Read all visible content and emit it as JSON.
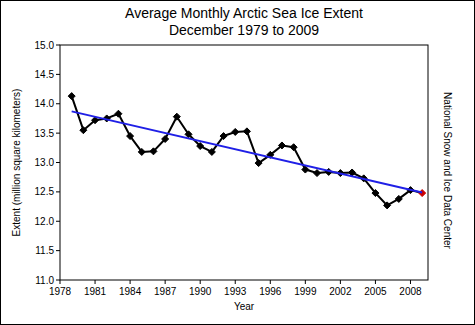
{
  "chart_data": {
    "type": "line",
    "title": "Average Monthly Arctic Sea Ice Extent",
    "subtitle": "December 1979 to 2009",
    "x_label": "Year",
    "y_label": "Extent (million square kilometers)",
    "annotation": "National Snow and Ice Data Center",
    "x": [
      1979,
      1980,
      1981,
      1982,
      1983,
      1984,
      1985,
      1986,
      1987,
      1988,
      1989,
      1990,
      1991,
      1992,
      1993,
      1994,
      1995,
      1996,
      1997,
      1998,
      1999,
      2000,
      2001,
      2002,
      2003,
      2004,
      2005,
      2006,
      2007,
      2008,
      2009
    ],
    "series": [
      {
        "type": "line",
        "color": "#000000",
        "marker": "diamond",
        "colors": [
          "#000000",
          "#000000",
          "#000000",
          "#000000",
          "#000000",
          "#000000",
          "#000000",
          "#000000",
          "#000000",
          "#000000",
          "#000000",
          "#000000",
          "#000000",
          "#000000",
          "#000000",
          "#000000",
          "#000000",
          "#000000",
          "#000000",
          "#000000",
          "#000000",
          "#000000",
          "#000000",
          "#000000",
          "#000000",
          "#000000",
          "#000000",
          "#000000",
          "#000000",
          "#000000",
          "#cc0000"
        ],
        "values": [
          14.13,
          13.55,
          13.72,
          13.75,
          13.83,
          13.45,
          13.18,
          13.19,
          13.4,
          13.78,
          13.48,
          13.28,
          13.18,
          13.45,
          13.52,
          13.53,
          12.99,
          13.13,
          13.29,
          13.26,
          12.88,
          12.82,
          12.84,
          12.82,
          12.83,
          12.73,
          12.48,
          12.27,
          12.38,
          12.53,
          12.48
        ]
      },
      {
        "type": "line",
        "color": "#1f1fe6",
        "marker": "none",
        "line_style": "solid",
        "x": [
          1979,
          2009
        ],
        "values": [
          13.87,
          12.49
        ]
      }
    ],
    "xlim": [
      1978,
      2009.5
    ],
    "xticks": [
      1978,
      1981,
      1984,
      1987,
      1990,
      1993,
      1996,
      1999,
      2002,
      2005,
      2008
    ],
    "ylim": [
      11,
      15
    ],
    "yticks": [
      {
        "value": 11,
        "label": "11.0"
      },
      {
        "value": 11.5,
        "label": "11.5"
      },
      {
        "value": 12,
        "label": "12.0"
      },
      {
        "value": 12.5,
        "label": "12.5"
      },
      {
        "value": 13,
        "label": "13.0"
      },
      {
        "value": 13.5,
        "label": "13.5"
      },
      {
        "value": 14,
        "label": "14.0"
      },
      {
        "value": 14.5,
        "label": "14.5"
      },
      {
        "value": 15,
        "label": "15.0"
      }
    ],
    "grid": false
  }
}
